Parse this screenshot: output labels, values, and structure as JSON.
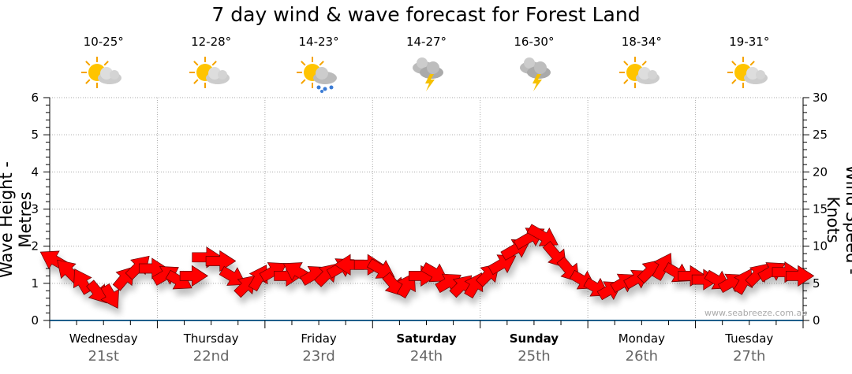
{
  "chart_data": {
    "type": "scatter",
    "title": "7 day wind & wave forecast for Forest Land",
    "ylabel_left": "Wave Height - Metres",
    "ylabel_right": "Wind Speed - Knots",
    "ylim_left": [
      0,
      6
    ],
    "ylim_right": [
      0,
      30
    ],
    "yticks_left": [
      "0",
      "1",
      "2",
      "3",
      "4",
      "5",
      "6"
    ],
    "yticks_right": [
      "0",
      "5",
      "10",
      "15",
      "20",
      "25",
      "30"
    ],
    "grid": true,
    "days": [
      {
        "name": "Wednesday",
        "date": "21st",
        "bold": false,
        "temp": "10-25°",
        "icon": "sun-cloud-icon"
      },
      {
        "name": "Thursday",
        "date": "22nd",
        "bold": false,
        "temp": "12-28°",
        "icon": "sun-cloud-icon"
      },
      {
        "name": "Friday",
        "date": "23rd",
        "bold": false,
        "temp": "14-23°",
        "icon": "sun-cloud-rain-icon"
      },
      {
        "name": "Saturday",
        "date": "24th",
        "bold": true,
        "temp": "14-27°",
        "icon": "storm-icon"
      },
      {
        "name": "Sunday",
        "date": "25th",
        "bold": true,
        "temp": "16-30°",
        "icon": "storm-icon"
      },
      {
        "name": "Monday",
        "date": "26th",
        "bold": false,
        "temp": "18-34°",
        "icon": "sun-cloud-icon"
      },
      {
        "name": "Tuesday",
        "date": "27th",
        "bold": false,
        "temp": "19-31°",
        "icon": "sun-cloud-icon"
      }
    ],
    "wind_speed_knots": [
      8,
      6.5,
      5,
      4,
      3.5,
      5.5,
      7,
      7,
      6,
      5.5,
      6,
      8.5,
      8,
      6,
      4.5,
      5.5,
      6.5,
      6,
      6.5,
      6,
      6,
      7,
      7.5,
      7.5,
      7,
      5,
      4.5,
      6,
      6.5,
      5,
      4.5,
      4.5,
      6,
      7.5,
      9.5,
      11,
      11.5,
      9,
      7,
      5.5,
      4.5,
      4,
      5,
      5.5,
      6.5,
      7,
      6.5,
      6,
      5.5,
      5.5,
      5,
      5,
      6,
      6.5,
      6.5,
      6
    ],
    "wind_dir_deg": [
      300,
      315,
      330,
      140,
      150,
      40,
      45,
      90,
      60,
      120,
      90,
      90,
      90,
      120,
      45,
      30,
      60,
      90,
      300,
      60,
      45,
      60,
      270,
      90,
      120,
      140,
      30,
      90,
      120,
      60,
      45,
      30,
      45,
      60,
      60,
      60,
      120,
      140,
      140,
      120,
      120,
      60,
      60,
      60,
      45,
      30,
      120,
      90,
      90,
      120,
      60,
      30,
      45,
      60,
      90,
      90
    ],
    "watermark": "www.seabreeze.com.au"
  },
  "colors": {
    "arrow": "#ff0000",
    "axis": "#1f5f8b",
    "grid": "#999999"
  }
}
